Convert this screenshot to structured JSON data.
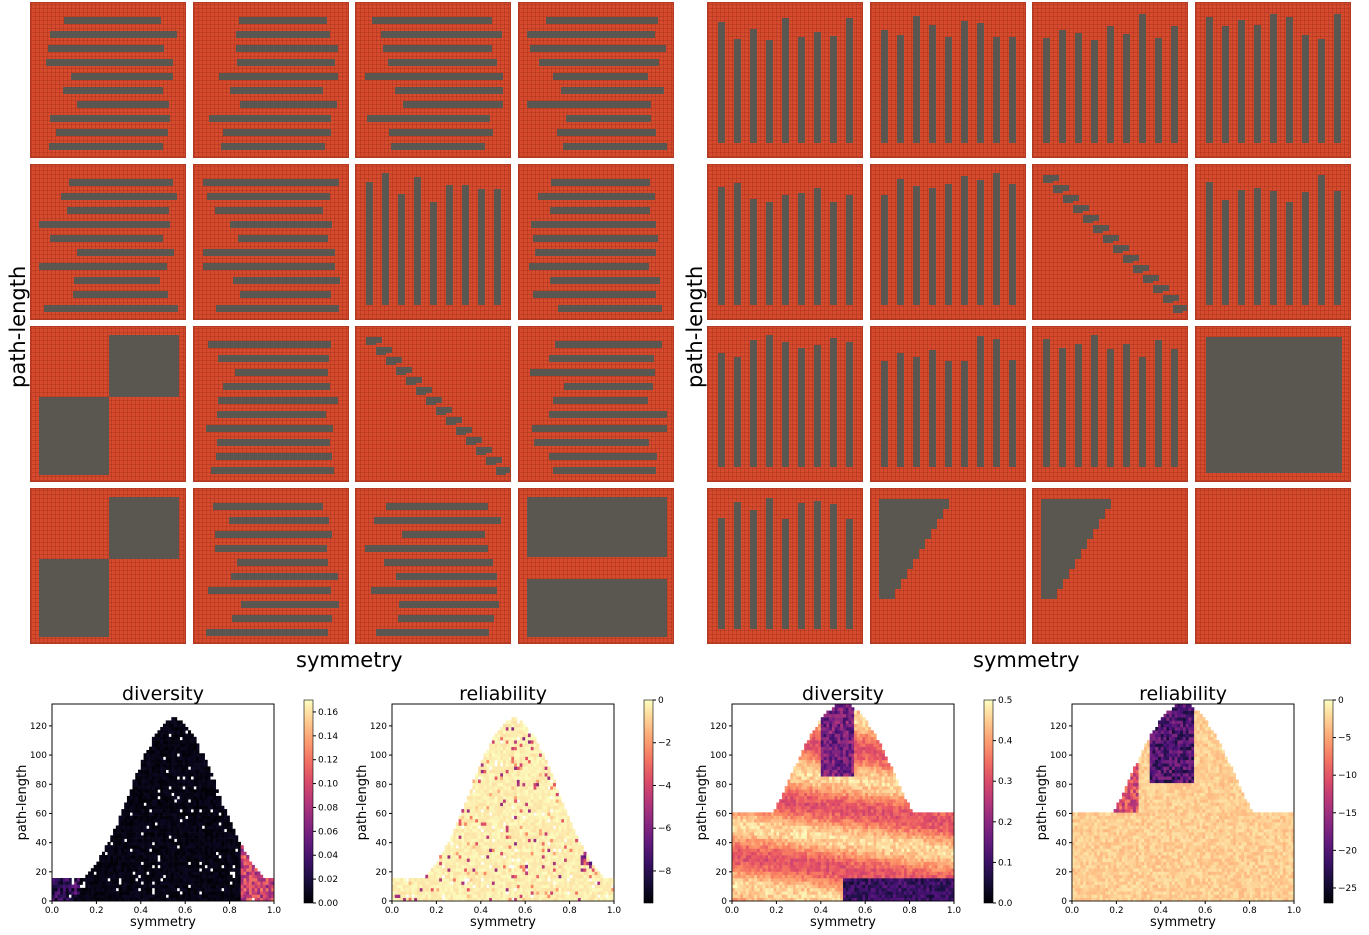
{
  "panels": [
    {
      "ylabel": "path-length",
      "xlabel": "symmetry"
    },
    {
      "ylabel": "path-length",
      "xlabel": "symmetry"
    }
  ],
  "colors": {
    "tile_fill": "#d64b2e",
    "wall": "#5a5650"
  },
  "chart_data": [
    {
      "type": "heatmap",
      "title": "diversity",
      "xlabel": "symmetry",
      "ylabel": "path-length",
      "xlim": [
        0.0,
        1.0
      ],
      "ylim": [
        0,
        135
      ],
      "x_ticks": [
        "0.0",
        "0.2",
        "0.4",
        "0.6",
        "0.8",
        "1.0"
      ],
      "y_ticks": [
        "0",
        "20",
        "40",
        "60",
        "80",
        "100",
        "120"
      ],
      "colorbar_ticks": [
        "0.00",
        "0.02",
        "0.04",
        "0.06",
        "0.08",
        "0.10",
        "0.12",
        "0.14",
        "0.16"
      ],
      "colorbar_range": [
        0,
        0.17
      ],
      "colormap": "magma"
    },
    {
      "type": "heatmap",
      "title": "reliability",
      "xlabel": "symmetry",
      "ylabel": "path-length",
      "xlim": [
        0.0,
        1.0
      ],
      "ylim": [
        0,
        135
      ],
      "x_ticks": [
        "0.0",
        "0.2",
        "0.4",
        "0.6",
        "0.8",
        "1.0"
      ],
      "y_ticks": [
        "0",
        "20",
        "40",
        "60",
        "80",
        "100",
        "120"
      ],
      "colorbar_ticks": [
        "0",
        "−2",
        "−4",
        "−6",
        "−8"
      ],
      "colorbar_range": [
        -9.5,
        0
      ],
      "colormap": "magma"
    },
    {
      "type": "heatmap",
      "title": "diversity",
      "xlabel": "symmetry",
      "ylabel": "path-length",
      "xlim": [
        0.0,
        1.0
      ],
      "ylim": [
        0,
        135
      ],
      "x_ticks": [
        "0.0",
        "0.2",
        "0.4",
        "0.6",
        "0.8",
        "1.0"
      ],
      "y_ticks": [
        "0",
        "20",
        "40",
        "60",
        "80",
        "100",
        "120"
      ],
      "colorbar_ticks": [
        "0.0",
        "0.1",
        "0.2",
        "0.3",
        "0.4",
        "0.5"
      ],
      "colorbar_range": [
        0,
        0.5
      ],
      "colormap": "magma"
    },
    {
      "type": "heatmap",
      "title": "reliability",
      "xlabel": "symmetry",
      "ylabel": "path-length",
      "xlim": [
        0.0,
        1.0
      ],
      "ylim": [
        0,
        135
      ],
      "x_ticks": [
        "0.0",
        "0.2",
        "0.4",
        "0.6",
        "0.8",
        "1.0"
      ],
      "y_ticks": [
        "0",
        "20",
        "40",
        "60",
        "80",
        "100",
        "120"
      ],
      "colorbar_ticks": [
        "0",
        "−5",
        "−10",
        "−15",
        "−20",
        "−25"
      ],
      "colorbar_range": [
        -27,
        0
      ],
      "colormap": "magma"
    }
  ]
}
